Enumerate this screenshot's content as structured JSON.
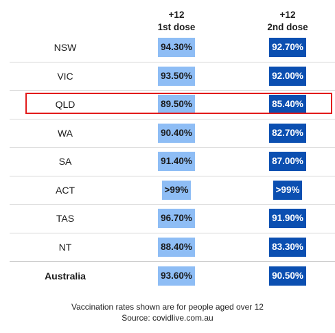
{
  "chart_data": {
    "type": "table",
    "columns": [
      {
        "line1": "+12",
        "line2": "1st dose"
      },
      {
        "line1": "+12",
        "line2": "2nd dose"
      }
    ],
    "rows": [
      {
        "label": "NSW",
        "first": "94.30%",
        "second": "92.70%"
      },
      {
        "label": "VIC",
        "first": "93.50%",
        "second": "92.00%"
      },
      {
        "label": "QLD",
        "first": "89.50%",
        "second": "85.40%"
      },
      {
        "label": "WA",
        "first": "90.40%",
        "second": "82.70%"
      },
      {
        "label": "SA",
        "first": "91.40%",
        "second": "87.00%"
      },
      {
        "label": "ACT",
        "first": ">99%",
        "second": ">99%"
      },
      {
        "label": "TAS",
        "first": "96.70%",
        "second": "91.90%"
      },
      {
        "label": "NT",
        "first": "88.40%",
        "second": "83.30%"
      },
      {
        "label": "Australia",
        "first": "93.60%",
        "second": "90.50%"
      }
    ],
    "highlighted_row": "QLD",
    "colors": {
      "first_dose": "#8ebdf5",
      "second_dose": "#0b4fb1",
      "highlight": "#e21a1a"
    }
  },
  "footnote": {
    "line1": "Vaccination rates shown are for people aged over 12",
    "line2": "Source: covidlive.com.au"
  }
}
